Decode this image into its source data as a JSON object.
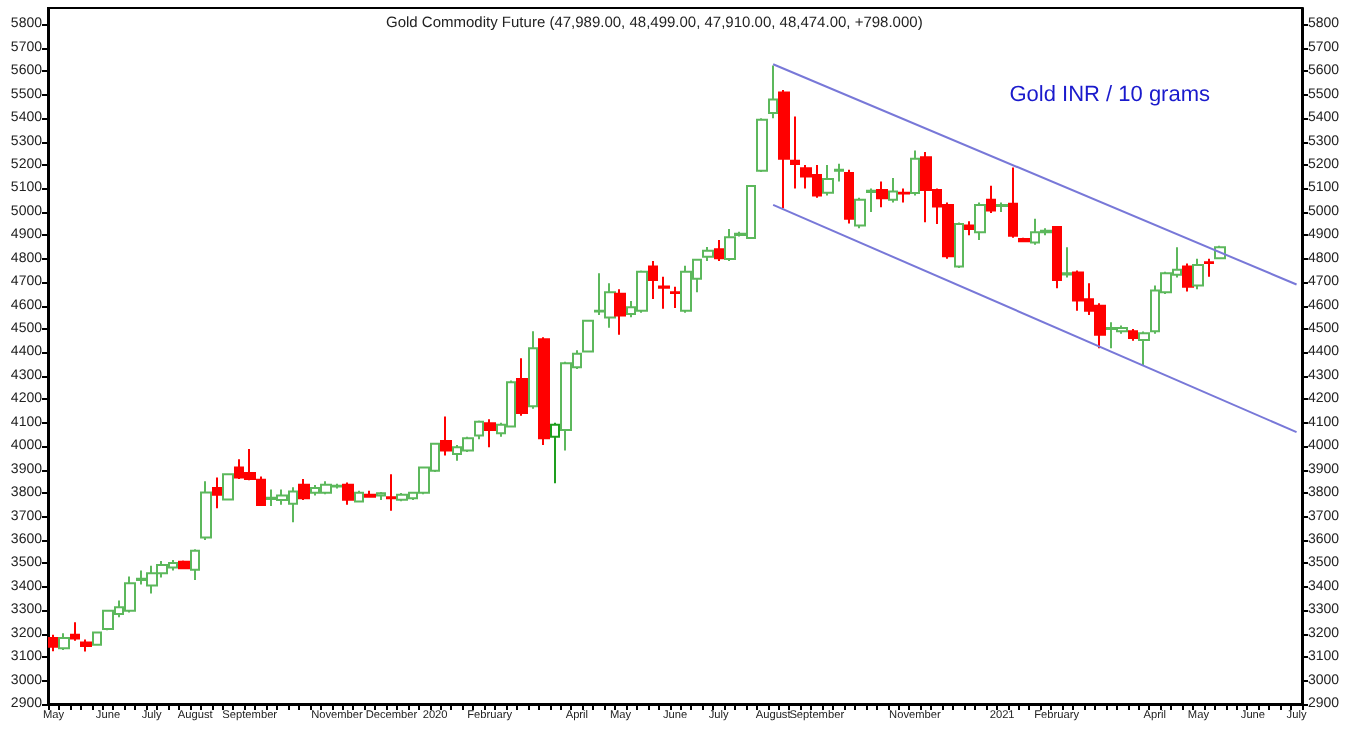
{
  "chart_data": {
    "type": "candlestick",
    "title": "Gold Commodity Future (47,989.00, 48,499.00, 47,910.00, 48,474.00, +798.000)",
    "annotations": [
      "Gold INR / 10 grams"
    ],
    "categories": [
      "May",
      null,
      null,
      null,
      null,
      "June",
      null,
      null,
      null,
      "July",
      null,
      null,
      null,
      "August",
      null,
      null,
      null,
      null,
      "September",
      null,
      null,
      null,
      null,
      null,
      null,
      null,
      "November",
      null,
      null,
      null,
      null,
      "December",
      null,
      null,
      null,
      "2020",
      null,
      null,
      null,
      null,
      "February",
      null,
      null,
      null,
      null,
      null,
      null,
      null,
      "April",
      null,
      null,
      null,
      "May",
      null,
      null,
      null,
      null,
      "June",
      null,
      null,
      null,
      "July",
      null,
      null,
      null,
      null,
      "August",
      null,
      null,
      null,
      "September",
      null,
      null,
      null,
      null,
      null,
      null,
      null,
      null,
      "November",
      null,
      null,
      null,
      null,
      null,
      null,
      null,
      "2021",
      null,
      null,
      null,
      null,
      "February",
      null,
      null,
      null,
      null,
      null,
      null,
      null,
      null,
      "April",
      null,
      null,
      null,
      "May",
      null,
      null,
      null,
      null,
      "June",
      null,
      null,
      null,
      "July"
    ],
    "ohlc": [
      [
        3182,
        3196,
        3125,
        3144
      ],
      [
        3138,
        3202,
        3130,
        3182
      ],
      [
        3196,
        3249,
        3170,
        3179
      ],
      [
        3162,
        3175,
        3124,
        3147
      ],
      [
        3153,
        3208,
        3150,
        3205
      ],
      [
        3220,
        3300,
        3215,
        3298
      ],
      [
        3284,
        3342,
        3270,
        3313
      ],
      [
        3298,
        3444,
        3290,
        3415
      ],
      [
        3429,
        3470,
        3410,
        3434
      ],
      [
        3406,
        3490,
        3371,
        3458
      ],
      [
        3458,
        3510,
        3440,
        3493
      ],
      [
        3482,
        3515,
        3470,
        3502
      ],
      [
        3507,
        3512,
        3475,
        3479
      ],
      [
        3473,
        3560,
        3429,
        3554
      ],
      [
        3610,
        3851,
        3600,
        3802
      ],
      [
        3822,
        3866,
        3735,
        3793
      ],
      [
        3773,
        3885,
        3770,
        3880
      ],
      [
        3909,
        3944,
        3860,
        3866
      ],
      [
        3886,
        3988,
        3855,
        3860
      ],
      [
        3857,
        3871,
        3745,
        3749
      ],
      [
        3775,
        3815,
        3745,
        3780
      ],
      [
        3770,
        3815,
        3750,
        3790
      ],
      [
        3755,
        3825,
        3676,
        3807
      ],
      [
        3836,
        3860,
        3770,
        3778
      ],
      [
        3801,
        3835,
        3790,
        3822
      ],
      [
        3801,
        3850,
        3795,
        3836
      ],
      [
        3828,
        3840,
        3820,
        3831
      ],
      [
        3836,
        3845,
        3750,
        3772
      ],
      [
        3764,
        3810,
        3760,
        3801
      ],
      [
        3793,
        3810,
        3780,
        3784
      ],
      [
        3790,
        3805,
        3770,
        3799
      ],
      [
        3782,
        3880,
        3725,
        3778
      ],
      [
        3772,
        3800,
        3765,
        3793
      ],
      [
        3778,
        3805,
        3770,
        3801
      ],
      [
        3801,
        3910,
        3795,
        3909
      ],
      [
        3895,
        4015,
        3890,
        4011
      ],
      [
        4022,
        4127,
        3960,
        3982
      ],
      [
        3967,
        4005,
        3938,
        3996
      ],
      [
        3982,
        4040,
        3975,
        4034
      ],
      [
        4046,
        4110,
        4030,
        4104
      ],
      [
        4098,
        4115,
        3996,
        4069
      ],
      [
        4055,
        4100,
        4040,
        4092
      ],
      [
        4084,
        4280,
        4080,
        4273
      ],
      [
        4287,
        4375,
        4130,
        4142
      ],
      [
        4171,
        4491,
        4160,
        4418
      ],
      [
        4456,
        4465,
        4005,
        4034
      ],
      [
        4040,
        4100,
        3842,
        4092
      ],
      [
        4069,
        4360,
        3982,
        4354
      ],
      [
        4337,
        4410,
        4330,
        4395
      ],
      [
        4404,
        4540,
        4400,
        4535
      ],
      [
        4575,
        4738,
        4560,
        4578
      ],
      [
        4549,
        4695,
        4506,
        4657
      ],
      [
        4651,
        4670,
        4476,
        4558
      ],
      [
        4564,
        4620,
        4550,
        4593
      ],
      [
        4578,
        4750,
        4570,
        4744
      ],
      [
        4767,
        4790,
        4628,
        4709
      ],
      [
        4682,
        4723,
        4587,
        4676
      ],
      [
        4657,
        4680,
        4590,
        4654
      ],
      [
        4578,
        4770,
        4570,
        4744
      ],
      [
        4715,
        4800,
        4657,
        4796
      ],
      [
        4808,
        4850,
        4790,
        4834
      ],
      [
        4840,
        4880,
        4790,
        4802
      ],
      [
        4799,
        4927,
        4790,
        4892
      ],
      [
        4901,
        4915,
        4895,
        4907
      ],
      [
        4889,
        5115,
        4885,
        5110
      ],
      [
        5175,
        5400,
        5170,
        5393
      ],
      [
        5422,
        5625,
        5400,
        5480
      ],
      [
        5509,
        5520,
        5015,
        5227
      ],
      [
        5218,
        5407,
        5100,
        5204
      ],
      [
        5186,
        5200,
        5100,
        5151
      ],
      [
        5157,
        5200,
        5060,
        5070
      ],
      [
        5082,
        5200,
        5070,
        5140
      ],
      [
        5175,
        5205,
        5130,
        5180
      ],
      [
        5166,
        5180,
        4950,
        4971
      ],
      [
        4942,
        5060,
        4930,
        5052
      ],
      [
        5085,
        5100,
        5000,
        5090
      ],
      [
        5093,
        5130,
        5020,
        5058
      ],
      [
        5052,
        5145,
        5040,
        5087
      ],
      [
        5082,
        5100,
        5040,
        5078
      ],
      [
        5081,
        5262,
        5070,
        5227
      ],
      [
        5233,
        5256,
        4956,
        5093
      ],
      [
        5093,
        5100,
        4948,
        5023
      ],
      [
        5029,
        5040,
        4800,
        4811
      ],
      [
        4767,
        4955,
        4760,
        4948
      ],
      [
        4942,
        4960,
        4900,
        4927
      ],
      [
        4913,
        5040,
        4880,
        5029
      ],
      [
        5052,
        5111,
        4995,
        5006
      ],
      [
        5025,
        5040,
        5000,
        5029
      ],
      [
        5035,
        5189,
        4890,
        4898
      ],
      [
        4884,
        4890,
        4870,
        4875
      ],
      [
        4869,
        4971,
        4860,
        4913
      ],
      [
        4913,
        4930,
        4900,
        4919
      ],
      [
        4936,
        4940,
        4674,
        4709
      ],
      [
        4733,
        4849,
        4720,
        4738
      ],
      [
        4741,
        4750,
        4578,
        4622
      ],
      [
        4627,
        4695,
        4560,
        4578
      ],
      [
        4599,
        4610,
        4418,
        4476
      ],
      [
        4500,
        4529,
        4418,
        4505
      ],
      [
        4491,
        4515,
        4480,
        4505
      ],
      [
        4491,
        4500,
        4450,
        4462
      ],
      [
        4453,
        4490,
        4345,
        4482
      ],
      [
        4491,
        4686,
        4480,
        4665
      ],
      [
        4657,
        4745,
        4650,
        4738
      ],
      [
        4732,
        4849,
        4720,
        4753
      ],
      [
        4767,
        4780,
        4660,
        4680
      ],
      [
        4686,
        4800,
        4670,
        4773
      ],
      [
        4785,
        4800,
        4723,
        4782
      ],
      [
        4802,
        4855,
        4800,
        4849
      ],
      null,
      null,
      null,
      null,
      null,
      null,
      null
    ],
    "colors": [
      "#ff0000",
      "#5cb85c",
      "#ff0000",
      "#ff0000",
      "#5cb85c",
      "#5cb85c",
      "#5cb85c",
      "#5cb85c",
      "#5cb85c",
      "#5cb85c",
      "#5cb85c",
      "#5cb85c",
      "#ff0000",
      "#5cb85c",
      "#5cb85c",
      "#ff0000",
      "#5cb85c",
      "#ff0000",
      "#ff0000",
      "#ff0000",
      "#5cb85c",
      "#5cb85c",
      "#5cb85c",
      "#ff0000",
      "#5cb85c",
      "#5cb85c",
      "#5cb85c",
      "#ff0000",
      "#5cb85c",
      "#ff0000",
      "#5cb85c",
      "#ff0000",
      "#5cb85c",
      "#5cb85c",
      "#5cb85c",
      "#5cb85c",
      "#ff0000",
      "#5cb85c",
      "#5cb85c",
      "#5cb85c",
      "#ff0000",
      "#5cb85c",
      "#5cb85c",
      "#ff0000",
      "#5cb85c",
      "#ff0000",
      "#1e9e1e",
      "#5cb85c",
      "#5cb85c",
      "#5cb85c",
      "#5cb85c",
      "#5cb85c",
      "#ff0000",
      "#5cb85c",
      "#5cb85c",
      "#ff0000",
      "#ff0000",
      "#ff0000",
      "#5cb85c",
      "#5cb85c",
      "#5cb85c",
      "#ff0000",
      "#5cb85c",
      "#5cb85c",
      "#5cb85c",
      "#5cb85c",
      "#5cb85c",
      "#ff0000",
      "#ff0000",
      "#ff0000",
      "#ff0000",
      "#5cb85c",
      "#5cb85c",
      "#ff0000",
      "#5cb85c",
      "#5cb85c",
      "#ff0000",
      "#5cb85c",
      "#ff0000",
      "#5cb85c",
      "#ff0000",
      "#ff0000",
      "#ff0000",
      "#5cb85c",
      "#ff0000",
      "#5cb85c",
      "#ff0000",
      "#5cb85c",
      "#ff0000",
      "#ff0000",
      "#5cb85c",
      "#5cb85c",
      "#ff0000",
      "#5cb85c",
      "#ff0000",
      "#ff0000",
      "#ff0000",
      "#5cb85c",
      "#5cb85c",
      "#ff0000",
      "#5cb85c",
      "#5cb85c",
      "#5cb85c",
      "#5cb85c",
      "#ff0000",
      "#5cb85c",
      "#ff0000",
      "#5cb85c",
      null,
      null,
      null,
      null,
      null,
      null,
      null
    ],
    "series": [
      {
        "type": "line",
        "color": "#7878d8",
        "values": [
          null,
          null,
          null,
          null,
          null,
          null,
          null,
          null,
          null,
          null,
          null,
          null,
          null,
          null,
          null,
          null,
          null,
          null,
          null,
          null,
          null,
          null,
          null,
          null,
          null,
          null,
          null,
          null,
          null,
          null,
          null,
          null,
          null,
          null,
          null,
          null,
          null,
          null,
          null,
          null,
          null,
          null,
          null,
          null,
          null,
          null,
          null,
          null,
          null,
          null,
          null,
          null,
          null,
          null,
          null,
          null,
          null,
          null,
          null,
          null,
          null,
          null,
          null,
          null,
          null,
          null,
          5630,
          null,
          null,
          null,
          null,
          null,
          null,
          null,
          null,
          null,
          null,
          null,
          null,
          null,
          null,
          null,
          null,
          null,
          null,
          null,
          null,
          null,
          null,
          null,
          null,
          null,
          null,
          null,
          null,
          null,
          null,
          null,
          null,
          null,
          null,
          null,
          null,
          null,
          null,
          null,
          null,
          null,
          null,
          null,
          null,
          null,
          null,
          null,
          4690
        ]
      },
      {
        "type": "line",
        "color": "#7878d8",
        "values": [
          null,
          null,
          null,
          null,
          null,
          null,
          null,
          null,
          null,
          null,
          null,
          null,
          null,
          null,
          null,
          null,
          null,
          null,
          null,
          null,
          null,
          null,
          null,
          null,
          null,
          null,
          null,
          null,
          null,
          null,
          null,
          null,
          null,
          null,
          null,
          null,
          null,
          null,
          null,
          null,
          null,
          null,
          null,
          null,
          null,
          null,
          null,
          null,
          null,
          null,
          null,
          null,
          null,
          null,
          null,
          null,
          null,
          null,
          null,
          null,
          null,
          null,
          null,
          null,
          null,
          null,
          5030,
          null,
          null,
          null,
          null,
          null,
          null,
          null,
          null,
          null,
          null,
          null,
          null,
          null,
          null,
          null,
          null,
          null,
          null,
          null,
          null,
          null,
          null,
          null,
          null,
          null,
          null,
          null,
          null,
          null,
          null,
          null,
          null,
          null,
          null,
          null,
          null,
          null,
          null,
          null,
          null,
          null,
          null,
          null,
          null,
          null,
          null,
          null,
          4060
        ]
      }
    ],
    "ylim": [
      2900,
      5870
    ],
    "yticks": [
      2900,
      3000,
      3100,
      3200,
      3300,
      3400,
      3500,
      3600,
      3700,
      3800,
      3900,
      4000,
      4100,
      4200,
      4300,
      4400,
      4500,
      4600,
      4700,
      4800,
      4900,
      5000,
      5100,
      5200,
      5300,
      5400,
      5500,
      5600,
      5700,
      5800
    ],
    "y2lim": [
      2900,
      5870
    ],
    "y2ticks": [
      2900,
      3000,
      3100,
      3200,
      3300,
      3400,
      3500,
      3600,
      3700,
      3800,
      3900,
      4000,
      4100,
      4200,
      4300,
      4400,
      4500,
      4600,
      4700,
      4800,
      4900,
      5000,
      5100,
      5200,
      5300,
      5400,
      5500,
      5600,
      5700,
      5800
    ],
    "grid": false
  }
}
